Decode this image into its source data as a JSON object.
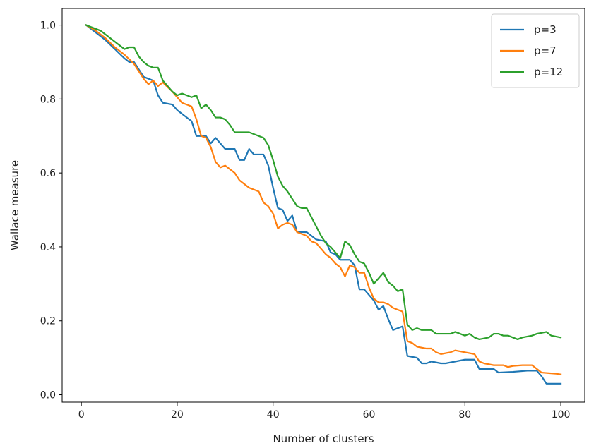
{
  "chart_data": {
    "type": "line",
    "title": "",
    "xlabel": "Number of clusters",
    "ylabel": "Wallace measure",
    "xlim": [
      -4,
      105
    ],
    "ylim": [
      -0.02,
      1.045
    ],
    "xticks": [
      0,
      20,
      40,
      60,
      80,
      100
    ],
    "yticks": [
      0.0,
      0.2,
      0.4,
      0.6,
      0.8,
      1.0
    ],
    "xtick_labels": [
      "0",
      "20",
      "40",
      "60",
      "80",
      "100"
    ],
    "ytick_labels": [
      "0.0",
      "0.2",
      "0.4",
      "0.6",
      "0.8",
      "1.0"
    ],
    "grid": false,
    "legend_position": "top-right",
    "series": [
      {
        "name": "p=3",
        "color": "#1f77b4",
        "points": [
          [
            1,
            1.0
          ],
          [
            3,
            0.98
          ],
          [
            5,
            0.96
          ],
          [
            7,
            0.935
          ],
          [
            9,
            0.91
          ],
          [
            10,
            0.9
          ],
          [
            11,
            0.9
          ],
          [
            13,
            0.86
          ],
          [
            15,
            0.85
          ],
          [
            16,
            0.81
          ],
          [
            17,
            0.79
          ],
          [
            19,
            0.785
          ],
          [
            20,
            0.77
          ],
          [
            21,
            0.76
          ],
          [
            22,
            0.75
          ],
          [
            23,
            0.74
          ],
          [
            24,
            0.7
          ],
          [
            26,
            0.7
          ],
          [
            27,
            0.68
          ],
          [
            28,
            0.695
          ],
          [
            29,
            0.68
          ],
          [
            30,
            0.665
          ],
          [
            32,
            0.665
          ],
          [
            33,
            0.635
          ],
          [
            34,
            0.635
          ],
          [
            35,
            0.665
          ],
          [
            36,
            0.65
          ],
          [
            38,
            0.65
          ],
          [
            39,
            0.62
          ],
          [
            40,
            0.56
          ],
          [
            41,
            0.505
          ],
          [
            42,
            0.5
          ],
          [
            43,
            0.47
          ],
          [
            44,
            0.485
          ],
          [
            45,
            0.44
          ],
          [
            47,
            0.44
          ],
          [
            48,
            0.43
          ],
          [
            49,
            0.42
          ],
          [
            51,
            0.415
          ],
          [
            52,
            0.385
          ],
          [
            53,
            0.38
          ],
          [
            54,
            0.365
          ],
          [
            56,
            0.365
          ],
          [
            57,
            0.35
          ],
          [
            58,
            0.285
          ],
          [
            59,
            0.285
          ],
          [
            60,
            0.27
          ],
          [
            61,
            0.255
          ],
          [
            62,
            0.23
          ],
          [
            63,
            0.24
          ],
          [
            64,
            0.205
          ],
          [
            65,
            0.175
          ],
          [
            66,
            0.18
          ],
          [
            67,
            0.185
          ],
          [
            68,
            0.105
          ],
          [
            70,
            0.1
          ],
          [
            71,
            0.085
          ],
          [
            72,
            0.085
          ],
          [
            73,
            0.09
          ],
          [
            75,
            0.085
          ],
          [
            76,
            0.085
          ],
          [
            78,
            0.09
          ],
          [
            80,
            0.095
          ],
          [
            82,
            0.095
          ],
          [
            83,
            0.07
          ],
          [
            86,
            0.07
          ],
          [
            87,
            0.06
          ],
          [
            90,
            0.062
          ],
          [
            93,
            0.065
          ],
          [
            95,
            0.065
          ],
          [
            96,
            0.05
          ],
          [
            97,
            0.03
          ],
          [
            99,
            0.03
          ],
          [
            100,
            0.03
          ]
        ]
      },
      {
        "name": "p=7",
        "color": "#ff7f0e",
        "points": [
          [
            1,
            1.0
          ],
          [
            3,
            0.985
          ],
          [
            5,
            0.965
          ],
          [
            7,
            0.94
          ],
          [
            9,
            0.92
          ],
          [
            11,
            0.895
          ],
          [
            13,
            0.855
          ],
          [
            14,
            0.84
          ],
          [
            15,
            0.85
          ],
          [
            16,
            0.835
          ],
          [
            17,
            0.845
          ],
          [
            19,
            0.82
          ],
          [
            20,
            0.805
          ],
          [
            21,
            0.79
          ],
          [
            23,
            0.78
          ],
          [
            24,
            0.745
          ],
          [
            25,
            0.7
          ],
          [
            26,
            0.695
          ],
          [
            27,
            0.67
          ],
          [
            28,
            0.63
          ],
          [
            29,
            0.615
          ],
          [
            30,
            0.62
          ],
          [
            31,
            0.61
          ],
          [
            32,
            0.6
          ],
          [
            33,
            0.58
          ],
          [
            34,
            0.57
          ],
          [
            35,
            0.56
          ],
          [
            37,
            0.55
          ],
          [
            38,
            0.52
          ],
          [
            39,
            0.51
          ],
          [
            40,
            0.49
          ],
          [
            41,
            0.45
          ],
          [
            42,
            0.46
          ],
          [
            43,
            0.465
          ],
          [
            44,
            0.46
          ],
          [
            45,
            0.44
          ],
          [
            47,
            0.43
          ],
          [
            48,
            0.415
          ],
          [
            49,
            0.41
          ],
          [
            50,
            0.395
          ],
          [
            51,
            0.38
          ],
          [
            52,
            0.37
          ],
          [
            53,
            0.355
          ],
          [
            54,
            0.345
          ],
          [
            55,
            0.32
          ],
          [
            56,
            0.35
          ],
          [
            57,
            0.345
          ],
          [
            58,
            0.33
          ],
          [
            59,
            0.33
          ],
          [
            60,
            0.29
          ],
          [
            61,
            0.26
          ],
          [
            62,
            0.25
          ],
          [
            63,
            0.25
          ],
          [
            64,
            0.245
          ],
          [
            65,
            0.235
          ],
          [
            66,
            0.23
          ],
          [
            67,
            0.225
          ],
          [
            68,
            0.145
          ],
          [
            69,
            0.14
          ],
          [
            70,
            0.13
          ],
          [
            72,
            0.125
          ],
          [
            73,
            0.125
          ],
          [
            74,
            0.115
          ],
          [
            75,
            0.11
          ],
          [
            77,
            0.115
          ],
          [
            78,
            0.12
          ],
          [
            80,
            0.115
          ],
          [
            82,
            0.11
          ],
          [
            83,
            0.09
          ],
          [
            84,
            0.085
          ],
          [
            86,
            0.08
          ],
          [
            88,
            0.08
          ],
          [
            89,
            0.075
          ],
          [
            90,
            0.078
          ],
          [
            92,
            0.08
          ],
          [
            94,
            0.08
          ],
          [
            95,
            0.07
          ],
          [
            96,
            0.06
          ],
          [
            98,
            0.058
          ],
          [
            99,
            0.057
          ],
          [
            100,
            0.055
          ]
        ]
      },
      {
        "name": "p=12",
        "color": "#2ca02c",
        "points": [
          [
            1,
            1.0
          ],
          [
            3,
            0.99
          ],
          [
            4,
            0.985
          ],
          [
            5,
            0.975
          ],
          [
            7,
            0.955
          ],
          [
            8,
            0.945
          ],
          [
            9,
            0.935
          ],
          [
            10,
            0.94
          ],
          [
            11,
            0.94
          ],
          [
            12,
            0.915
          ],
          [
            13,
            0.9
          ],
          [
            14,
            0.89
          ],
          [
            15,
            0.885
          ],
          [
            16,
            0.885
          ],
          [
            17,
            0.85
          ],
          [
            18,
            0.835
          ],
          [
            19,
            0.82
          ],
          [
            20,
            0.81
          ],
          [
            21,
            0.815
          ],
          [
            22,
            0.81
          ],
          [
            23,
            0.805
          ],
          [
            24,
            0.81
          ],
          [
            25,
            0.775
          ],
          [
            26,
            0.785
          ],
          [
            27,
            0.77
          ],
          [
            28,
            0.75
          ],
          [
            29,
            0.75
          ],
          [
            30,
            0.745
          ],
          [
            31,
            0.73
          ],
          [
            32,
            0.71
          ],
          [
            33,
            0.71
          ],
          [
            35,
            0.71
          ],
          [
            37,
            0.7
          ],
          [
            38,
            0.695
          ],
          [
            39,
            0.675
          ],
          [
            40,
            0.635
          ],
          [
            41,
            0.59
          ],
          [
            42,
            0.565
          ],
          [
            43,
            0.55
          ],
          [
            44,
            0.53
          ],
          [
            45,
            0.51
          ],
          [
            46,
            0.505
          ],
          [
            47,
            0.505
          ],
          [
            48,
            0.48
          ],
          [
            49,
            0.455
          ],
          [
            50,
            0.43
          ],
          [
            51,
            0.41
          ],
          [
            52,
            0.4
          ],
          [
            53,
            0.385
          ],
          [
            54,
            0.37
          ],
          [
            55,
            0.415
          ],
          [
            56,
            0.405
          ],
          [
            57,
            0.38
          ],
          [
            58,
            0.36
          ],
          [
            59,
            0.355
          ],
          [
            60,
            0.33
          ],
          [
            61,
            0.3
          ],
          [
            62,
            0.315
          ],
          [
            63,
            0.33
          ],
          [
            64,
            0.305
          ],
          [
            65,
            0.295
          ],
          [
            66,
            0.28
          ],
          [
            67,
            0.285
          ],
          [
            68,
            0.19
          ],
          [
            69,
            0.175
          ],
          [
            70,
            0.18
          ],
          [
            71,
            0.175
          ],
          [
            73,
            0.175
          ],
          [
            74,
            0.165
          ],
          [
            75,
            0.165
          ],
          [
            77,
            0.165
          ],
          [
            78,
            0.17
          ],
          [
            79,
            0.165
          ],
          [
            80,
            0.16
          ],
          [
            81,
            0.165
          ],
          [
            82,
            0.155
          ],
          [
            83,
            0.15
          ],
          [
            85,
            0.155
          ],
          [
            86,
            0.165
          ],
          [
            87,
            0.165
          ],
          [
            88,
            0.16
          ],
          [
            89,
            0.16
          ],
          [
            90,
            0.155
          ],
          [
            91,
            0.15
          ],
          [
            92,
            0.155
          ],
          [
            94,
            0.16
          ],
          [
            95,
            0.165
          ],
          [
            97,
            0.17
          ],
          [
            98,
            0.16
          ],
          [
            100,
            0.155
          ]
        ]
      }
    ]
  }
}
